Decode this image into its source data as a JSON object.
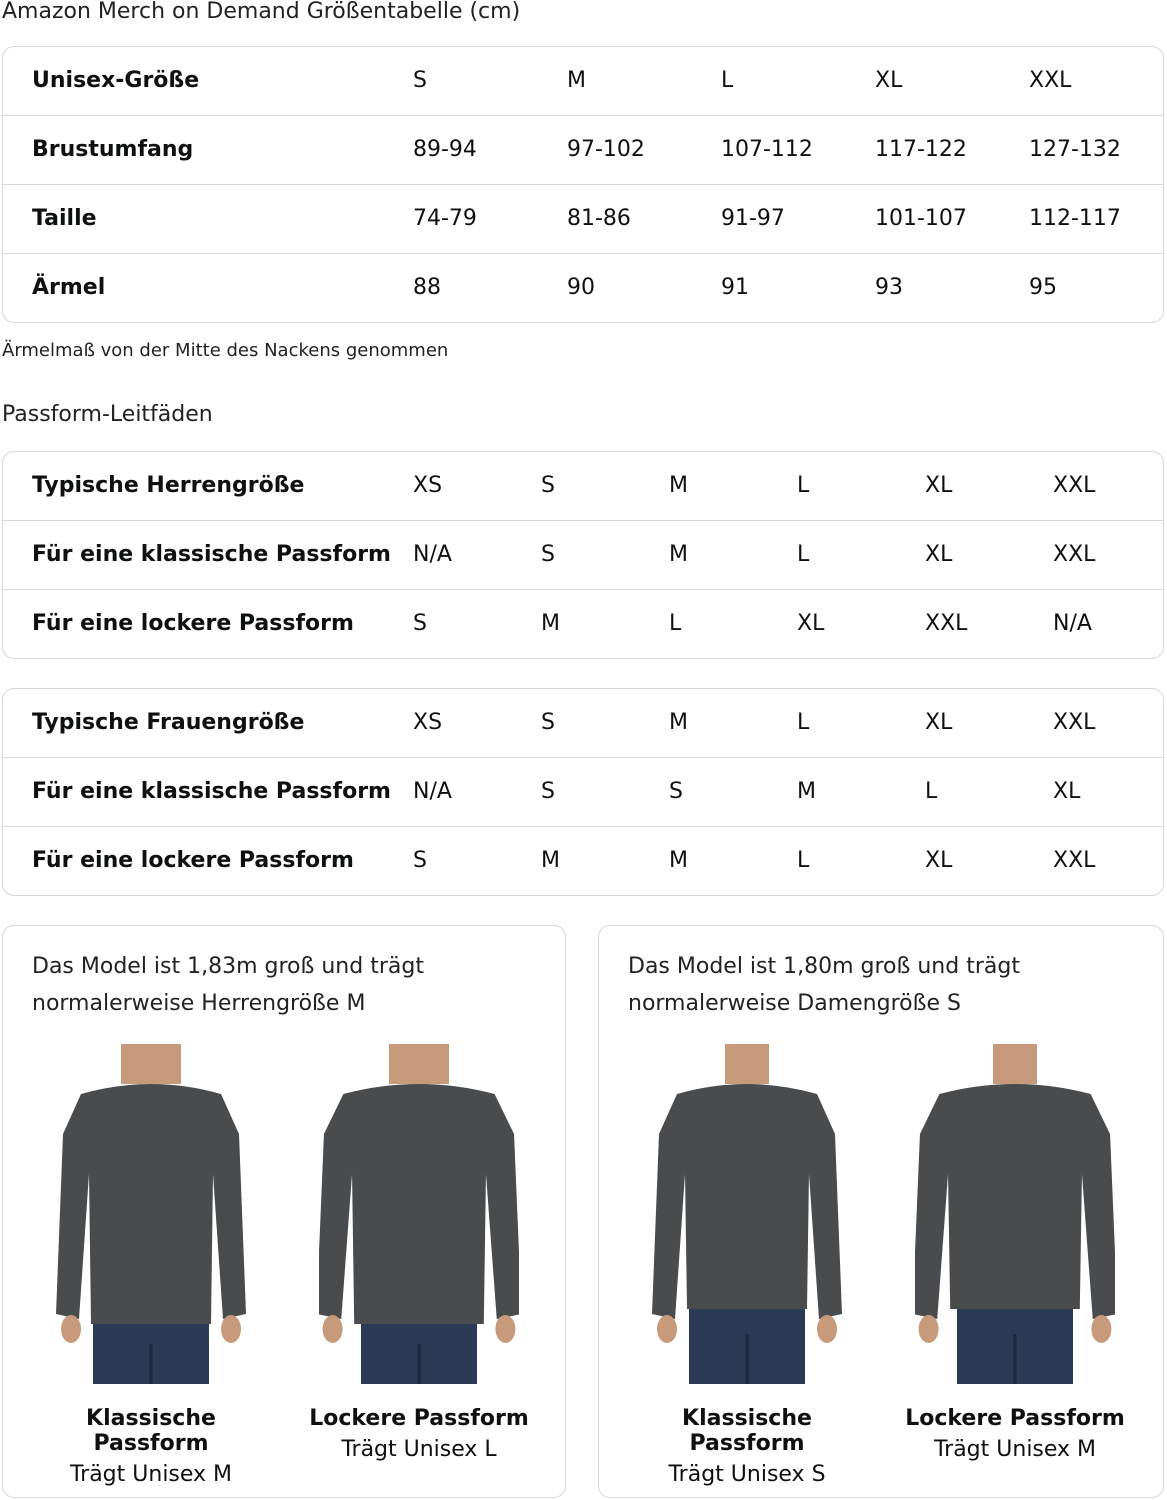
{
  "title": "Amazon Merch on Demand Größentabelle (cm)",
  "unisex_table": {
    "rows": [
      {
        "label": "Unisex-Größe",
        "values": [
          "S",
          "M",
          "L",
          "XL",
          "XXL"
        ]
      },
      {
        "label": "Brustumfang",
        "values": [
          "89-94",
          "97-102",
          "107-112",
          "117-122",
          "127-132"
        ]
      },
      {
        "label": "Taille",
        "values": [
          "74-79",
          "81-86",
          "91-97",
          "101-107",
          "112-117"
        ]
      },
      {
        "label": "Ärmel",
        "values": [
          "88",
          "90",
          "91",
          "93",
          "95"
        ]
      }
    ]
  },
  "sleeve_note": "Ärmelmaß von der Mitte des Nackens genommen",
  "fit_heading": "Passform-Leitfäden",
  "men_table": {
    "rows": [
      {
        "label": "Typische Herrengröße",
        "values": [
          "XS",
          "S",
          "M",
          "L",
          "XL",
          "XXL"
        ]
      },
      {
        "label": "Für eine klassische Passform",
        "values": [
          "N/A",
          "S",
          "M",
          "L",
          "XL",
          "XXL"
        ]
      },
      {
        "label": "Für eine lockere Passform",
        "values": [
          "S",
          "M",
          "L",
          "XL",
          "XXL",
          "N/A"
        ]
      }
    ]
  },
  "women_table": {
    "rows": [
      {
        "label": "Typische Frauengröße",
        "values": [
          "XS",
          "S",
          "M",
          "L",
          "XL",
          "XXL"
        ]
      },
      {
        "label": "Für eine klassische Passform",
        "values": [
          "N/A",
          "S",
          "S",
          "M",
          "L",
          "XL"
        ]
      },
      {
        "label": "Für eine lockere Passform",
        "values": [
          "S",
          "M",
          "M",
          "L",
          "XL",
          "XXL"
        ]
      }
    ]
  },
  "cards": [
    {
      "desc": "Das Model ist 1,83m groß und trägt normalerweise Herrengröße M",
      "figures": [
        {
          "fit": "Klassische Passform",
          "size": "Trägt Unisex M"
        },
        {
          "fit": "Lockere Passform",
          "size": "Trägt Unisex L"
        }
      ]
    },
    {
      "desc": "Das Model ist 1,80m groß und trägt normalerweise Damengröße S",
      "figures": [
        {
          "fit": "Klassische Passform",
          "size": "Trägt Unisex S"
        },
        {
          "fit": "Lockere Passform",
          "size": "Trägt Unisex M"
        }
      ]
    }
  ],
  "colors": {
    "border": "#d5d9d9",
    "shirt": "#4a4b4d",
    "jeans": "#2c3b55"
  }
}
